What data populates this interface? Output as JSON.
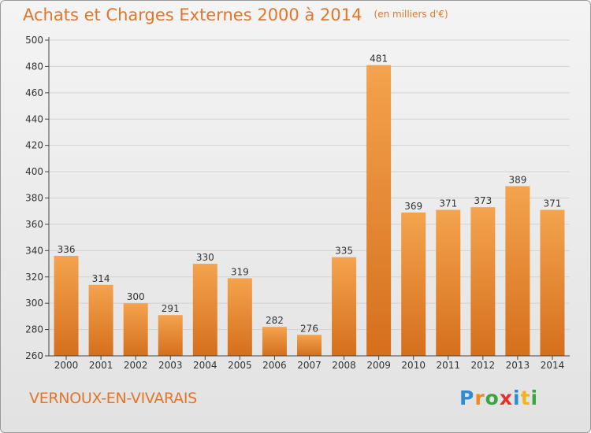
{
  "header": {
    "title": "Achats et Charges Externes 2000 à 2014",
    "unit": "(en milliers d'€)"
  },
  "footer": {
    "commune": "VERNOUX-EN-VIVARAIS",
    "logo_text": "Proxiti",
    "logo_colors": [
      "#2e8bd4",
      "#f28a1e",
      "#3aa641",
      "#e2322b",
      "#2e8bd4",
      "#f2b31e",
      "#3aa641"
    ]
  },
  "colors": {
    "bar_top": "#f4a34e",
    "bar_bottom": "#d56f1c",
    "axis": "#444444",
    "grid": "#d2d2d2",
    "text": "#333333"
  },
  "chart_data": {
    "type": "bar",
    "title": "Achats et Charges Externes 2000 à 2014",
    "subtitle": "(en milliers d'€)",
    "categories": [
      "2000",
      "2001",
      "2002",
      "2003",
      "2004",
      "2005",
      "2006",
      "2007",
      "2008",
      "2009",
      "2010",
      "2011",
      "2012",
      "2013",
      "2014"
    ],
    "values": [
      336,
      314,
      300,
      291,
      330,
      319,
      282,
      276,
      335,
      481,
      369,
      371,
      373,
      389,
      371
    ],
    "ylim": [
      260,
      500
    ],
    "yticks": [
      260,
      280,
      300,
      320,
      340,
      360,
      380,
      400,
      420,
      440,
      460,
      480,
      500
    ],
    "grid": true,
    "xlabel": "",
    "ylabel": ""
  }
}
